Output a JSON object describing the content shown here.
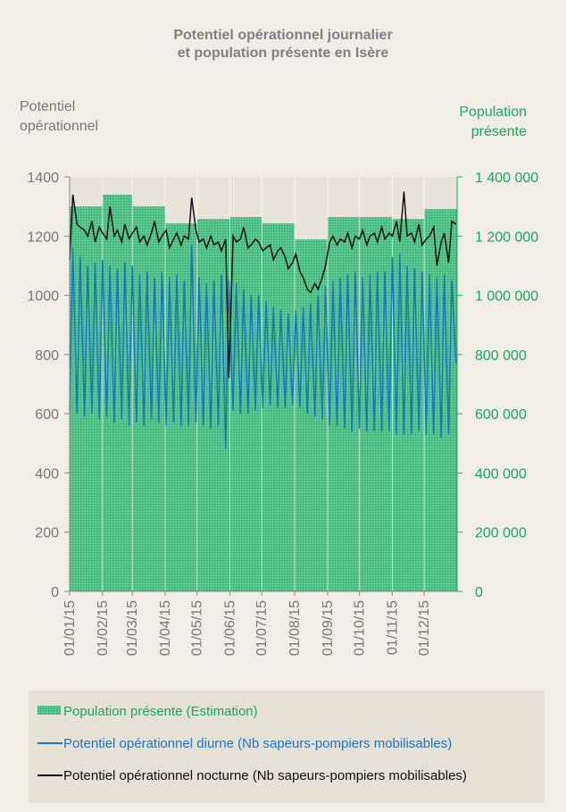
{
  "chart_data": {
    "type": "line",
    "title": [
      "Potentiel opérationnel journalier",
      "et population présente en Isère"
    ],
    "y_label": [
      "Potentiel",
      "opérationnel"
    ],
    "y2_label": [
      "Population",
      "présente"
    ],
    "x": [
      1,
      4,
      8,
      11,
      15,
      18,
      22,
      25,
      29,
      32,
      36,
      39,
      43,
      46,
      50,
      53,
      57,
      60,
      64,
      67,
      71,
      74,
      78,
      81,
      85,
      88,
      92,
      95,
      99,
      102,
      106,
      109,
      113,
      116,
      120,
      123,
      127,
      130,
      134,
      137,
      141,
      144,
      148,
      151,
      155,
      158,
      162,
      165,
      169,
      172,
      176,
      179,
      183,
      186,
      190,
      193,
      197,
      200,
      204,
      207,
      211,
      214,
      218,
      221,
      225,
      228,
      232,
      235,
      239,
      242,
      246,
      249,
      253,
      256,
      260,
      263,
      267,
      270,
      274,
      277,
      281,
      284,
      288,
      291,
      295,
      298,
      302,
      305,
      309,
      312,
      316,
      319,
      323,
      326,
      330,
      333,
      337,
      340,
      344,
      347,
      351,
      354,
      358,
      361,
      365
    ],
    "xlim": [
      1,
      366
    ],
    "xticks": [
      {
        "value": 1,
        "label": "01/01/15"
      },
      {
        "value": 32,
        "label": "01/02/15"
      },
      {
        "value": 60,
        "label": "01/03/15"
      },
      {
        "value": 91,
        "label": "01/04/15"
      },
      {
        "value": 121,
        "label": "01/05/15"
      },
      {
        "value": 152,
        "label": "01/06/15"
      },
      {
        "value": 182,
        "label": "01/07/15"
      },
      {
        "value": 213,
        "label": "01/08/15"
      },
      {
        "value": 244,
        "label": "01/09/15"
      },
      {
        "value": 274,
        "label": "01/10/15"
      },
      {
        "value": 305,
        "label": "01/11/15"
      },
      {
        "value": 335,
        "label": "01/12/15"
      }
    ],
    "ylim": [
      0,
      1400
    ],
    "yticks": [
      0,
      200,
      400,
      600,
      800,
      1000,
      1200,
      1400
    ],
    "y2lim": [
      0,
      1400000
    ],
    "y2ticks": [
      0,
      {
        "value": 200000,
        "label": "200 000"
      },
      {
        "value": 400000,
        "label": "400 000"
      },
      {
        "value": 600000,
        "label": "600 000"
      },
      {
        "value": 800000,
        "label": "800 000"
      },
      {
        "value": 1000000,
        "label": "1 000 000"
      },
      {
        "value": 1200000,
        "label": "1 200 000"
      },
      {
        "value": 1400000,
        "label": "1 400 000"
      }
    ],
    "series": [
      {
        "name": "Population présente (Estimation)",
        "color": "#3cb878",
        "axis": "y2",
        "style": "step-area",
        "x": [
          1,
          32,
          60,
          91,
          121,
          152,
          182,
          213,
          244,
          274,
          305,
          335
        ],
        "values": [
          1300000,
          1340000,
          1300000,
          1243000,
          1258000,
          1264000,
          1243000,
          1189000,
          1264000,
          1264000,
          1258000,
          1291000
        ]
      },
      {
        "name": "Potentiel opérationnel diurne (Nb sapeurs-pompiers mobilisables)",
        "color": "#1a74c4",
        "values": [
          610,
          1160,
          600,
          1130,
          590,
          1100,
          600,
          1110,
          580,
          1120,
          590,
          1100,
          570,
          1090,
          580,
          1110,
          560,
          1100,
          570,
          1070,
          560,
          1080,
          580,
          1060,
          570,
          1080,
          560,
          1060,
          570,
          1070,
          560,
          1050,
          560,
          1170,
          570,
          1060,
          560,
          1040,
          550,
          1050,
          560,
          1070,
          480,
          1050,
          610,
          1040,
          600,
          1020,
          600,
          1000,
          610,
          1000,
          620,
          980,
          630,
          960,
          620,
          950,
          620,
          940,
          630,
          950,
          620,
          960,
          600,
          970,
          590,
          1000,
          580,
          1030,
          560,
          1050,
          560,
          1060,
          550,
          1070,
          540,
          1080,
          550,
          1060,
          540,
          1070,
          540,
          1080,
          540,
          1080,
          540,
          1130,
          530,
          1140,
          530,
          1100,
          530,
          1090,
          540,
          1080,
          530,
          1070,
          530,
          1060,
          520,
          1070,
          530,
          1050,
          770
        ]
      },
      {
        "name": "Potentiel opérationnel nocturne (Nb sapeurs-pompiers mobilisables)",
        "color": "#111111",
        "values": [
          1120,
          1340,
          1240,
          1230,
          1220,
          1200,
          1250,
          1180,
          1230,
          1210,
          1190,
          1300,
          1200,
          1220,
          1180,
          1240,
          1190,
          1210,
          1230,
          1180,
          1200,
          1170,
          1210,
          1250,
          1180,
          1200,
          1220,
          1160,
          1190,
          1210,
          1170,
          1200,
          1190,
          1330,
          1220,
          1180,
          1190,
          1160,
          1200,
          1170,
          1180,
          1150,
          1190,
          720,
          1200,
          1180,
          1190,
          1230,
          1160,
          1170,
          1190,
          1180,
          1150,
          1160,
          1170,
          1120,
          1150,
          1160,
          1130,
          1090,
          1110,
          1140,
          1080,
          1060,
          1020,
          1010,
          1040,
          1020,
          1060,
          1100,
          1180,
          1200,
          1170,
          1190,
          1180,
          1210,
          1160,
          1200,
          1190,
          1220,
          1170,
          1200,
          1210,
          1180,
          1230,
          1190,
          1210,
          1200,
          1250,
          1180,
          1350,
          1200,
          1210,
          1180,
          1240,
          1170,
          1190,
          1200,
          1230,
          1100,
          1180,
          1210,
          1110,
          1250,
          1240
        ]
      }
    ]
  }
}
